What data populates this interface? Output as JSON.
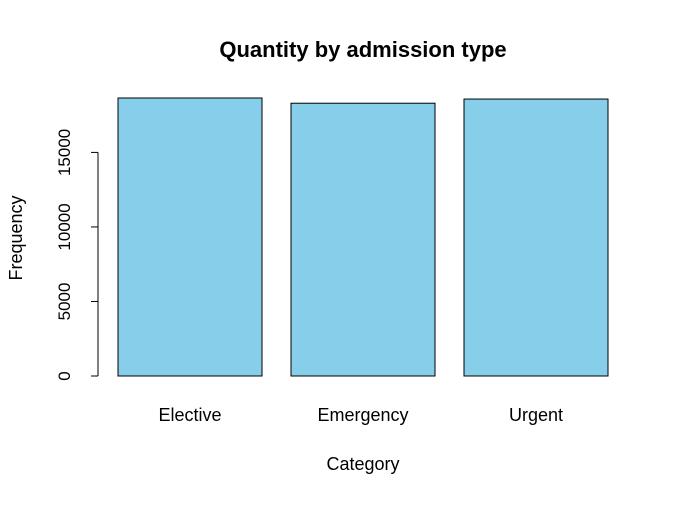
{
  "chart_data": {
    "type": "bar",
    "title": "Quantity by admission type",
    "xlabel": "Category",
    "ylabel": "Frequency",
    "categories": [
      "Elective",
      "Emergency",
      "Urgent"
    ],
    "values": [
      18650,
      18300,
      18580
    ],
    "yticks": [
      0,
      5000,
      10000,
      15000
    ],
    "ylim": [
      0,
      18650
    ],
    "grid": false,
    "legend": "none",
    "bar_color": "#87CEEB",
    "bar_border_color": "#000000"
  }
}
